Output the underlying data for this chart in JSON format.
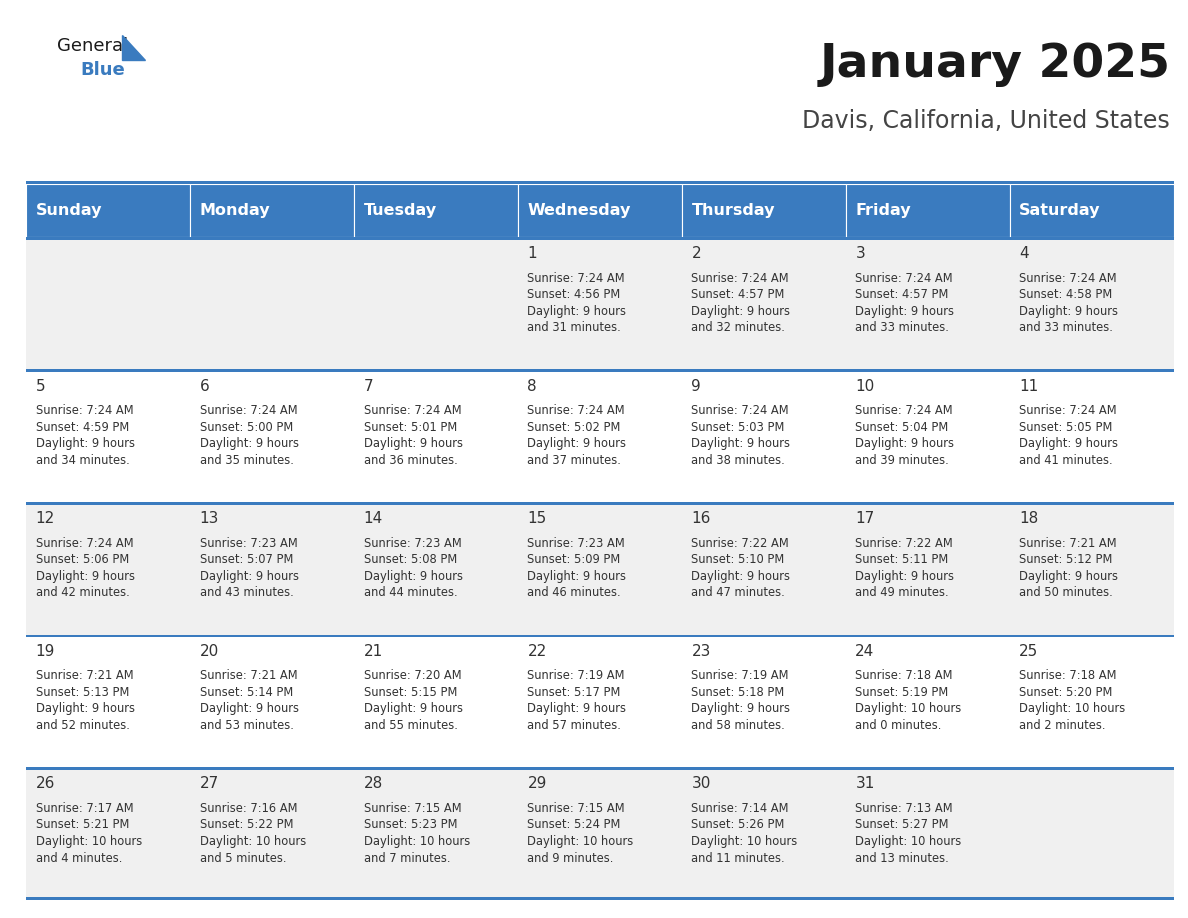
{
  "title": "January 2025",
  "subtitle": "Davis, California, United States",
  "header_bg_color": "#3a7bbf",
  "header_text_color": "#ffffff",
  "day_names": [
    "Sunday",
    "Monday",
    "Tuesday",
    "Wednesday",
    "Thursday",
    "Friday",
    "Saturday"
  ],
  "row_bg_even": "#f0f0f0",
  "row_bg_odd": "#ffffff",
  "cell_text_color": "#333333",
  "day_num_color": "#333333",
  "border_color": "#3a7bbf",
  "logo_general_color": "#222222",
  "logo_blue_color": "#3a7bbf",
  "weeks": [
    [
      {
        "day": null,
        "sunrise": null,
        "sunset": null,
        "daylight": null
      },
      {
        "day": null,
        "sunrise": null,
        "sunset": null,
        "daylight": null
      },
      {
        "day": null,
        "sunrise": null,
        "sunset": null,
        "daylight": null
      },
      {
        "day": 1,
        "sunrise": "7:24 AM",
        "sunset": "4:56 PM",
        "daylight": "9 hours\nand 31 minutes."
      },
      {
        "day": 2,
        "sunrise": "7:24 AM",
        "sunset": "4:57 PM",
        "daylight": "9 hours\nand 32 minutes."
      },
      {
        "day": 3,
        "sunrise": "7:24 AM",
        "sunset": "4:57 PM",
        "daylight": "9 hours\nand 33 minutes."
      },
      {
        "day": 4,
        "sunrise": "7:24 AM",
        "sunset": "4:58 PM",
        "daylight": "9 hours\nand 33 minutes."
      }
    ],
    [
      {
        "day": 5,
        "sunrise": "7:24 AM",
        "sunset": "4:59 PM",
        "daylight": "9 hours\nand 34 minutes."
      },
      {
        "day": 6,
        "sunrise": "7:24 AM",
        "sunset": "5:00 PM",
        "daylight": "9 hours\nand 35 minutes."
      },
      {
        "day": 7,
        "sunrise": "7:24 AM",
        "sunset": "5:01 PM",
        "daylight": "9 hours\nand 36 minutes."
      },
      {
        "day": 8,
        "sunrise": "7:24 AM",
        "sunset": "5:02 PM",
        "daylight": "9 hours\nand 37 minutes."
      },
      {
        "day": 9,
        "sunrise": "7:24 AM",
        "sunset": "5:03 PM",
        "daylight": "9 hours\nand 38 minutes."
      },
      {
        "day": 10,
        "sunrise": "7:24 AM",
        "sunset": "5:04 PM",
        "daylight": "9 hours\nand 39 minutes."
      },
      {
        "day": 11,
        "sunrise": "7:24 AM",
        "sunset": "5:05 PM",
        "daylight": "9 hours\nand 41 minutes."
      }
    ],
    [
      {
        "day": 12,
        "sunrise": "7:24 AM",
        "sunset": "5:06 PM",
        "daylight": "9 hours\nand 42 minutes."
      },
      {
        "day": 13,
        "sunrise": "7:23 AM",
        "sunset": "5:07 PM",
        "daylight": "9 hours\nand 43 minutes."
      },
      {
        "day": 14,
        "sunrise": "7:23 AM",
        "sunset": "5:08 PM",
        "daylight": "9 hours\nand 44 minutes."
      },
      {
        "day": 15,
        "sunrise": "7:23 AM",
        "sunset": "5:09 PM",
        "daylight": "9 hours\nand 46 minutes."
      },
      {
        "day": 16,
        "sunrise": "7:22 AM",
        "sunset": "5:10 PM",
        "daylight": "9 hours\nand 47 minutes."
      },
      {
        "day": 17,
        "sunrise": "7:22 AM",
        "sunset": "5:11 PM",
        "daylight": "9 hours\nand 49 minutes."
      },
      {
        "day": 18,
        "sunrise": "7:21 AM",
        "sunset": "5:12 PM",
        "daylight": "9 hours\nand 50 minutes."
      }
    ],
    [
      {
        "day": 19,
        "sunrise": "7:21 AM",
        "sunset": "5:13 PM",
        "daylight": "9 hours\nand 52 minutes."
      },
      {
        "day": 20,
        "sunrise": "7:21 AM",
        "sunset": "5:14 PM",
        "daylight": "9 hours\nand 53 minutes."
      },
      {
        "day": 21,
        "sunrise": "7:20 AM",
        "sunset": "5:15 PM",
        "daylight": "9 hours\nand 55 minutes."
      },
      {
        "day": 22,
        "sunrise": "7:19 AM",
        "sunset": "5:17 PM",
        "daylight": "9 hours\nand 57 minutes."
      },
      {
        "day": 23,
        "sunrise": "7:19 AM",
        "sunset": "5:18 PM",
        "daylight": "9 hours\nand 58 minutes."
      },
      {
        "day": 24,
        "sunrise": "7:18 AM",
        "sunset": "5:19 PM",
        "daylight": "10 hours\nand 0 minutes."
      },
      {
        "day": 25,
        "sunrise": "7:18 AM",
        "sunset": "5:20 PM",
        "daylight": "10 hours\nand 2 minutes."
      }
    ],
    [
      {
        "day": 26,
        "sunrise": "7:17 AM",
        "sunset": "5:21 PM",
        "daylight": "10 hours\nand 4 minutes."
      },
      {
        "day": 27,
        "sunrise": "7:16 AM",
        "sunset": "5:22 PM",
        "daylight": "10 hours\nand 5 minutes."
      },
      {
        "day": 28,
        "sunrise": "7:15 AM",
        "sunset": "5:23 PM",
        "daylight": "10 hours\nand 7 minutes."
      },
      {
        "day": 29,
        "sunrise": "7:15 AM",
        "sunset": "5:24 PM",
        "daylight": "10 hours\nand 9 minutes."
      },
      {
        "day": 30,
        "sunrise": "7:14 AM",
        "sunset": "5:26 PM",
        "daylight": "10 hours\nand 11 minutes."
      },
      {
        "day": 31,
        "sunrise": "7:13 AM",
        "sunset": "5:27 PM",
        "daylight": "10 hours\nand 13 minutes."
      },
      {
        "day": null,
        "sunrise": null,
        "sunset": null,
        "daylight": null
      }
    ]
  ]
}
